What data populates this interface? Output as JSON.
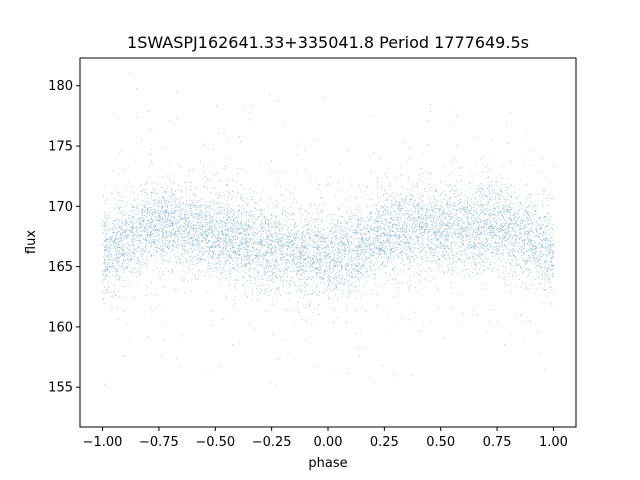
{
  "chart_data": {
    "type": "scatter",
    "title": "1SWASPJ162641.33+335041.8 Period 1777649.5s",
    "xlabel": "phase",
    "ylabel": "flux",
    "xlim": [
      -1.1,
      1.1
    ],
    "ylim": [
      151.7,
      182.3
    ],
    "x_ticks": [
      -1.0,
      -0.75,
      -0.5,
      -0.25,
      0.0,
      0.25,
      0.5,
      0.75,
      1.0
    ],
    "x_tick_labels": [
      "−1.00",
      "−0.75",
      "−0.50",
      "−0.25",
      "0.00",
      "0.25",
      "0.50",
      "0.75",
      "1.00"
    ],
    "y_ticks": [
      155,
      160,
      165,
      170,
      175,
      180
    ],
    "y_tick_labels": [
      "155",
      "160",
      "165",
      "170",
      "175",
      "180"
    ],
    "grid": false,
    "legend": "none",
    "marker_color": "#1f77b4",
    "series": [
      {
        "x": [
          -1.0,
          -0.875,
          -0.75,
          -0.625,
          -0.5,
          -0.375,
          -0.25,
          -0.125,
          0.0,
          0.125,
          0.25,
          0.375,
          0.5,
          0.625,
          0.75,
          0.875,
          1.0
        ],
        "y": [
          166.0,
          167.5,
          168.5,
          168.3,
          167.6,
          167.0,
          166.8,
          166.1,
          165.8,
          166.6,
          167.6,
          168.4,
          168.0,
          168.3,
          168.5,
          167.5,
          166.0
        ],
        "y_scatter_sd": 1.8,
        "y_min": 153.0,
        "y_max": 181.0
      }
    ]
  }
}
